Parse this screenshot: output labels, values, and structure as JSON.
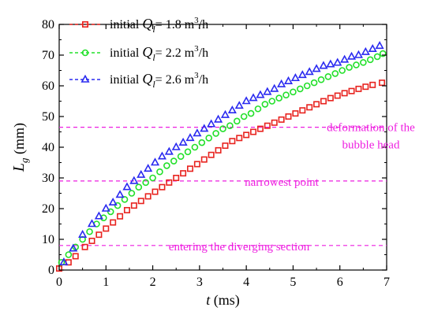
{
  "chart_data": {
    "type": "scatter",
    "xlim": [
      0,
      7
    ],
    "ylim": [
      0,
      80
    ],
    "x_ticks": [
      "0",
      "1",
      "2",
      "3",
      "4",
      "5",
      "6",
      "7"
    ],
    "y_ticks": [
      "0",
      "10",
      "20",
      "30",
      "40",
      "50",
      "60",
      "70",
      "80"
    ],
    "xlabel": {
      "var": "t",
      "unit": " (ms)"
    },
    "ylabel": {
      "var": "L",
      "sub": "g",
      "unit": " (mm)"
    },
    "grid": false,
    "legend_position": "top-left",
    "series": [
      {
        "name": "initial Q_l= 1.8 m³/h",
        "legend": {
          "prefix": "initial ",
          "var": "Q",
          "sub": "l",
          "mid": "= 1.8 m",
          "sup": "3",
          "suffix": "/h"
        },
        "marker": "square",
        "color": "#e8231f",
        "x": [
          0.0,
          0.2,
          0.35,
          0.55,
          0.7,
          0.85,
          1.0,
          1.15,
          1.3,
          1.45,
          1.6,
          1.75,
          1.9,
          2.05,
          2.2,
          2.35,
          2.5,
          2.65,
          2.8,
          2.95,
          3.1,
          3.25,
          3.4,
          3.55,
          3.7,
          3.85,
          4.0,
          4.15,
          4.3,
          4.45,
          4.6,
          4.75,
          4.9,
          5.05,
          5.2,
          5.35,
          5.5,
          5.65,
          5.8,
          5.95,
          6.1,
          6.25,
          6.4,
          6.55,
          6.7,
          6.9
        ],
        "y": [
          0.5,
          2.5,
          4.5,
          7.5,
          9.5,
          11.5,
          13.5,
          15.5,
          17.5,
          19.5,
          21.0,
          22.5,
          24.0,
          25.5,
          27.0,
          28.5,
          30.0,
          31.5,
          33.0,
          34.5,
          36.0,
          37.5,
          39.0,
          40.5,
          42.0,
          43.0,
          44.0,
          45.0,
          46.0,
          47.0,
          48.0,
          49.0,
          50.0,
          51.0,
          52.0,
          53.0,
          54.0,
          55.0,
          56.0,
          56.8,
          57.6,
          58.3,
          59.0,
          59.7,
          60.3,
          61.0
        ]
      },
      {
        "name": "initial Q_l= 2.2 m³/h",
        "legend": {
          "prefix": "initial ",
          "var": "Q",
          "sub": "l",
          "mid": "= 2.2 m",
          "sup": "3",
          "suffix": "/h"
        },
        "marker": "circle",
        "color": "#22e02a",
        "x": [
          0.05,
          0.2,
          0.35,
          0.5,
          0.65,
          0.8,
          0.95,
          1.1,
          1.25,
          1.4,
          1.55,
          1.7,
          1.85,
          2.0,
          2.15,
          2.3,
          2.45,
          2.6,
          2.75,
          2.9,
          3.05,
          3.2,
          3.35,
          3.5,
          3.65,
          3.8,
          3.95,
          4.1,
          4.25,
          4.4,
          4.55,
          4.7,
          4.85,
          5.0,
          5.15,
          5.3,
          5.45,
          5.6,
          5.75,
          5.9,
          6.05,
          6.2,
          6.35,
          6.5,
          6.65,
          6.8,
          6.92
        ],
        "y": [
          2.5,
          5.0,
          7.5,
          10.0,
          12.5,
          15.0,
          17.0,
          19.0,
          21.0,
          23.0,
          25.0,
          27.0,
          28.5,
          30.0,
          32.0,
          34.0,
          35.5,
          37.0,
          38.5,
          40.0,
          41.5,
          43.0,
          44.5,
          46.0,
          47.0,
          48.5,
          50.0,
          51.0,
          52.5,
          54.0,
          55.0,
          56.0,
          57.0,
          58.0,
          59.0,
          60.0,
          61.0,
          62.0,
          63.0,
          64.0,
          65.0,
          66.0,
          66.8,
          67.6,
          68.5,
          69.5,
          70.5
        ]
      },
      {
        "name": "initial Q_l= 2.6 m³/h",
        "legend": {
          "prefix": "initial ",
          "var": "Q",
          "sub": "l",
          "mid": "= 2.6 m",
          "sup": "3",
          "suffix": "/h"
        },
        "marker": "triangle",
        "color": "#2a2af0",
        "x": [
          0.1,
          0.3,
          0.5,
          0.7,
          0.85,
          1.0,
          1.15,
          1.3,
          1.45,
          1.6,
          1.75,
          1.9,
          2.05,
          2.2,
          2.35,
          2.5,
          2.65,
          2.8,
          2.95,
          3.1,
          3.25,
          3.4,
          3.55,
          3.7,
          3.85,
          4.0,
          4.15,
          4.3,
          4.45,
          4.6,
          4.75,
          4.9,
          5.05,
          5.2,
          5.35,
          5.5,
          5.65,
          5.8,
          5.95,
          6.1,
          6.25,
          6.4,
          6.55,
          6.7,
          6.85
        ],
        "y": [
          2.5,
          7.0,
          11.5,
          15.0,
          17.5,
          20.0,
          22.0,
          24.5,
          27.0,
          29.0,
          31.0,
          33.0,
          35.0,
          37.0,
          38.5,
          40.0,
          41.5,
          43.0,
          44.5,
          46.0,
          47.5,
          49.0,
          50.5,
          52.0,
          53.5,
          55.0,
          56.0,
          57.0,
          58.0,
          59.0,
          60.5,
          61.5,
          62.5,
          63.5,
          64.5,
          65.5,
          66.5,
          67.0,
          67.5,
          68.5,
          69.5,
          70.0,
          71.0,
          72.0,
          73.0
        ]
      }
    ],
    "annotations": [
      {
        "y": 46.5,
        "lines": [
          "deformation of the",
          "bubble head"
        ],
        "color": "#ee1ee0",
        "anchor": "right"
      },
      {
        "y": 29.0,
        "lines": [
          "narrowest point"
        ],
        "color": "#ee1ee0",
        "anchor": "right"
      },
      {
        "y": 8.0,
        "lines": [
          "entering the diverging section"
        ],
        "color": "#ee1ee0",
        "anchor": "right"
      }
    ]
  }
}
